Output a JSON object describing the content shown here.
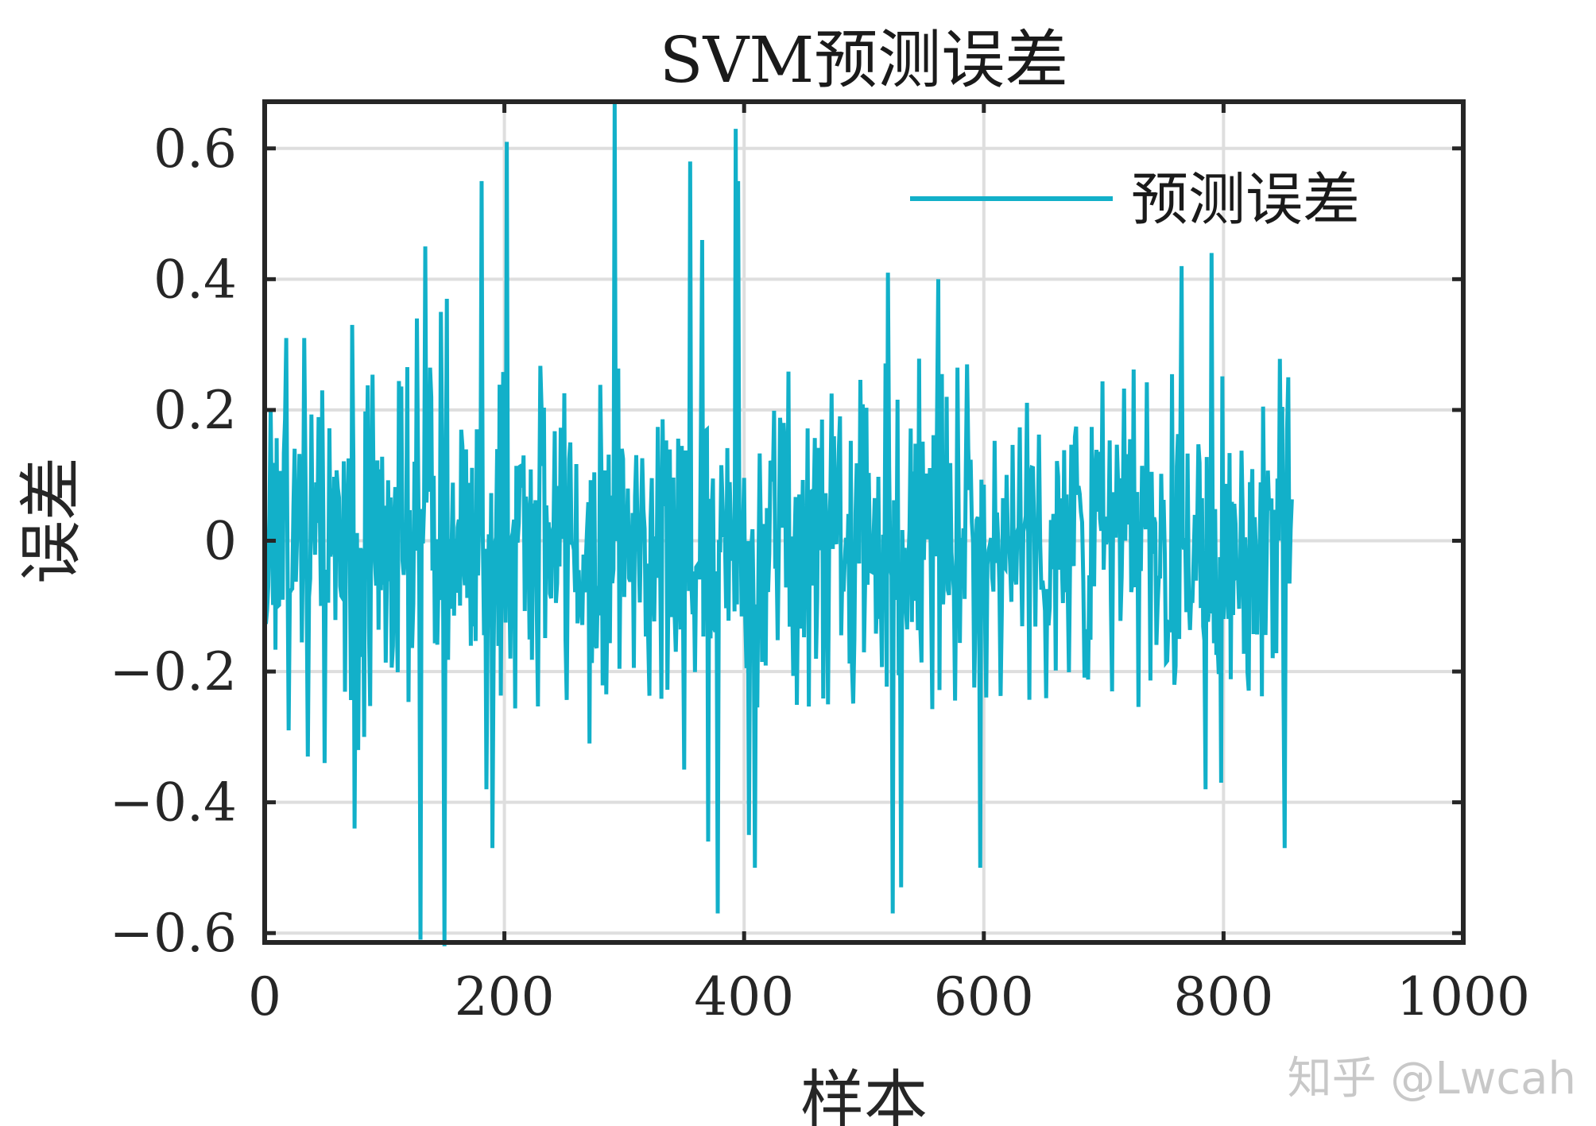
{
  "chart_data": {
    "type": "line",
    "title": "SVM预测误差",
    "xlabel": "样本",
    "ylabel": "误差",
    "xlim": [
      0,
      1000
    ],
    "ylim": [
      -0.6143,
      0.6714
    ],
    "xticks": [
      0,
      200,
      400,
      600,
      800,
      1000
    ],
    "xtick_labels": [
      "0",
      "200",
      "400",
      "600",
      "800",
      "1000"
    ],
    "yticks": [
      -0.6,
      -0.4,
      -0.2,
      0,
      0.2,
      0.4,
      0.6
    ],
    "ytick_labels": [
      "−0.6",
      "−0.4",
      "−0.2",
      "0",
      "0.2",
      "0.4",
      "0.6"
    ],
    "grid": true,
    "legend_position": "top-right",
    "series": [
      {
        "name": "预测误差",
        "color": "#12B0C9",
        "n_points": 858,
        "noise_std": 0.13,
        "extremes": [
          {
            "x": 3,
            "y": -0.07
          },
          {
            "x": 5,
            "y": 0.2
          },
          {
            "x": 11,
            "y": -0.1
          },
          {
            "x": 18,
            "y": 0.31
          },
          {
            "x": 20,
            "y": -0.29
          },
          {
            "x": 33,
            "y": 0.31
          },
          {
            "x": 36,
            "y": -0.33
          },
          {
            "x": 48,
            "y": 0.23
          },
          {
            "x": 50,
            "y": -0.34
          },
          {
            "x": 73,
            "y": 0.33
          },
          {
            "x": 75,
            "y": -0.44
          },
          {
            "x": 78,
            "y": -0.32
          },
          {
            "x": 83,
            "y": -0.3
          },
          {
            "x": 127,
            "y": 0.34
          },
          {
            "x": 130,
            "y": -0.61
          },
          {
            "x": 134,
            "y": 0.45
          },
          {
            "x": 147,
            "y": 0.35
          },
          {
            "x": 152,
            "y": 0.37
          },
          {
            "x": 150,
            "y": -0.62
          },
          {
            "x": 181,
            "y": 0.55
          },
          {
            "x": 185,
            "y": -0.38
          },
          {
            "x": 190,
            "y": -0.47
          },
          {
            "x": 202,
            "y": 0.61
          },
          {
            "x": 271,
            "y": -0.31
          },
          {
            "x": 292,
            "y": 0.67
          },
          {
            "x": 350,
            "y": -0.35
          },
          {
            "x": 355,
            "y": 0.58
          },
          {
            "x": 365,
            "y": 0.46
          },
          {
            "x": 370,
            "y": -0.46
          },
          {
            "x": 378,
            "y": -0.57
          },
          {
            "x": 393,
            "y": 0.63
          },
          {
            "x": 395,
            "y": 0.55
          },
          {
            "x": 404,
            "y": -0.45
          },
          {
            "x": 409,
            "y": -0.5
          },
          {
            "x": 520,
            "y": 0.41
          },
          {
            "x": 524,
            "y": -0.57
          },
          {
            "x": 531,
            "y": -0.53
          },
          {
            "x": 562,
            "y": 0.4
          },
          {
            "x": 597,
            "y": -0.5
          },
          {
            "x": 765,
            "y": 0.42
          },
          {
            "x": 785,
            "y": -0.38
          },
          {
            "x": 790,
            "y": 0.44
          },
          {
            "x": 798,
            "y": -0.37
          },
          {
            "x": 851,
            "y": -0.47
          },
          {
            "x": 854,
            "y": 0.25
          }
        ]
      }
    ]
  },
  "watermark": "知乎 @Lwcah"
}
